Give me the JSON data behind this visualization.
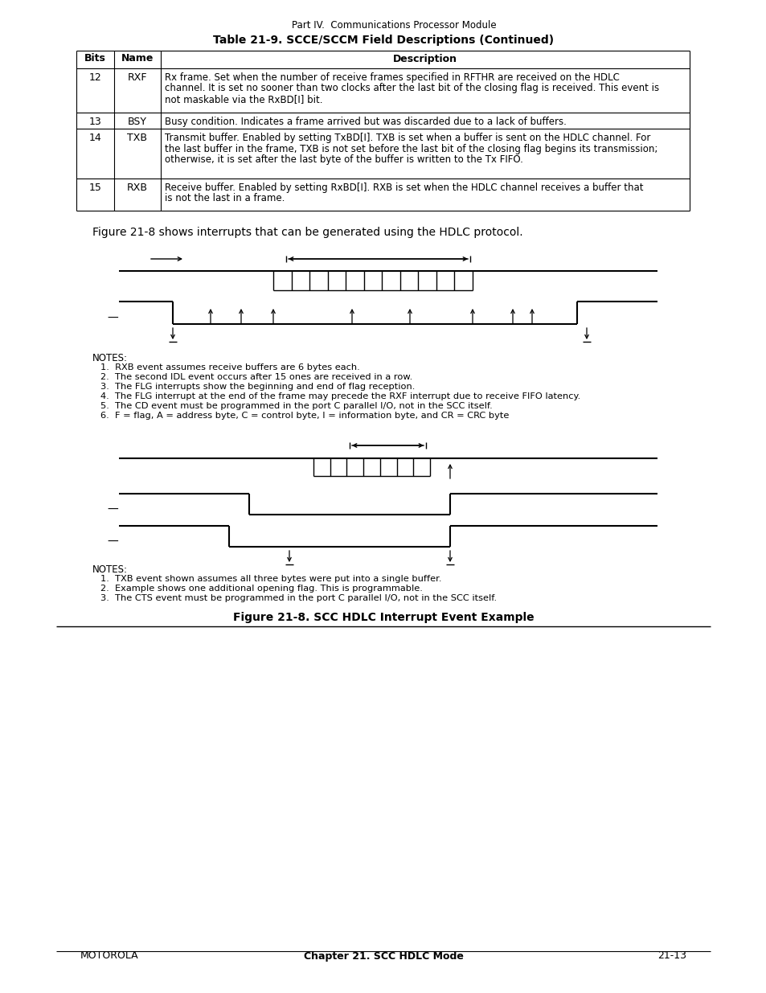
{
  "page_title": "Part IV.  Communications Processor Module",
  "table_title": "Table 21-9. SCCE/SCCM Field Descriptions (Continued)",
  "table_headers": [
    "Bits",
    "Name",
    "Description"
  ],
  "table_rows": [
    [
      "12",
      "RXF",
      "Rx frame. Set when the number of receive frames specified in RFTHR are received on the HDLC\nchannel. It is set no sooner than two clocks after the last bit of the closing flag is received. This event is\nnot maskable via the RxBD[I] bit."
    ],
    [
      "13",
      "BSY",
      "Busy condition. Indicates a frame arrived but was discarded due to a lack of buffers."
    ],
    [
      "14",
      "TXB",
      "Transmit buffer. Enabled by setting TxBD[I]. TXB is set when a buffer is sent on the HDLC channel. For\nthe last buffer in the frame, TXB is not set before the last bit of the closing flag begins its transmission;\notherwise, it is set after the last byte of the buffer is written to the Tx FIFO."
    ],
    [
      "15",
      "RXB",
      "Receive buffer. Enabled by setting RxBD[I]. RXB is set when the HDLC channel receives a buffer that\nis not the last in a frame."
    ]
  ],
  "figure_caption": "Figure 21-8. SCC HDLC Interrupt Event Example",
  "intro_text": "Figure 21-8 shows interrupts that can be generated using the HDLC protocol.",
  "notes1": [
    "1.  RXB event assumes receive buffers are 6 bytes each.",
    "2.  The second IDL event occurs after 15 ones are received in a row.",
    "3.  The FLG interrupts show the beginning and end of flag reception.",
    "4.  The FLG interrupt at the end of the frame may precede the RXF interrupt due to receive FIFO latency.",
    "5.  The CD event must be programmed in the port C parallel I/O, not in the SCC itself.",
    "6.  F = flag, A = address byte, C = control byte, I = information byte, and CR = CRC byte"
  ],
  "notes2": [
    "1.  TXB event shown assumes all three bytes were put into a single buffer.",
    "2.  Example shows one additional opening flag. This is programmable.",
    "3.  The CTS event must be programmed in the port C parallel I/O, not in the SCC itself."
  ],
  "footer_left": "MOTOROLA",
  "footer_center": "Chapter 21. SCC HDLC Mode",
  "footer_right": "21-13"
}
